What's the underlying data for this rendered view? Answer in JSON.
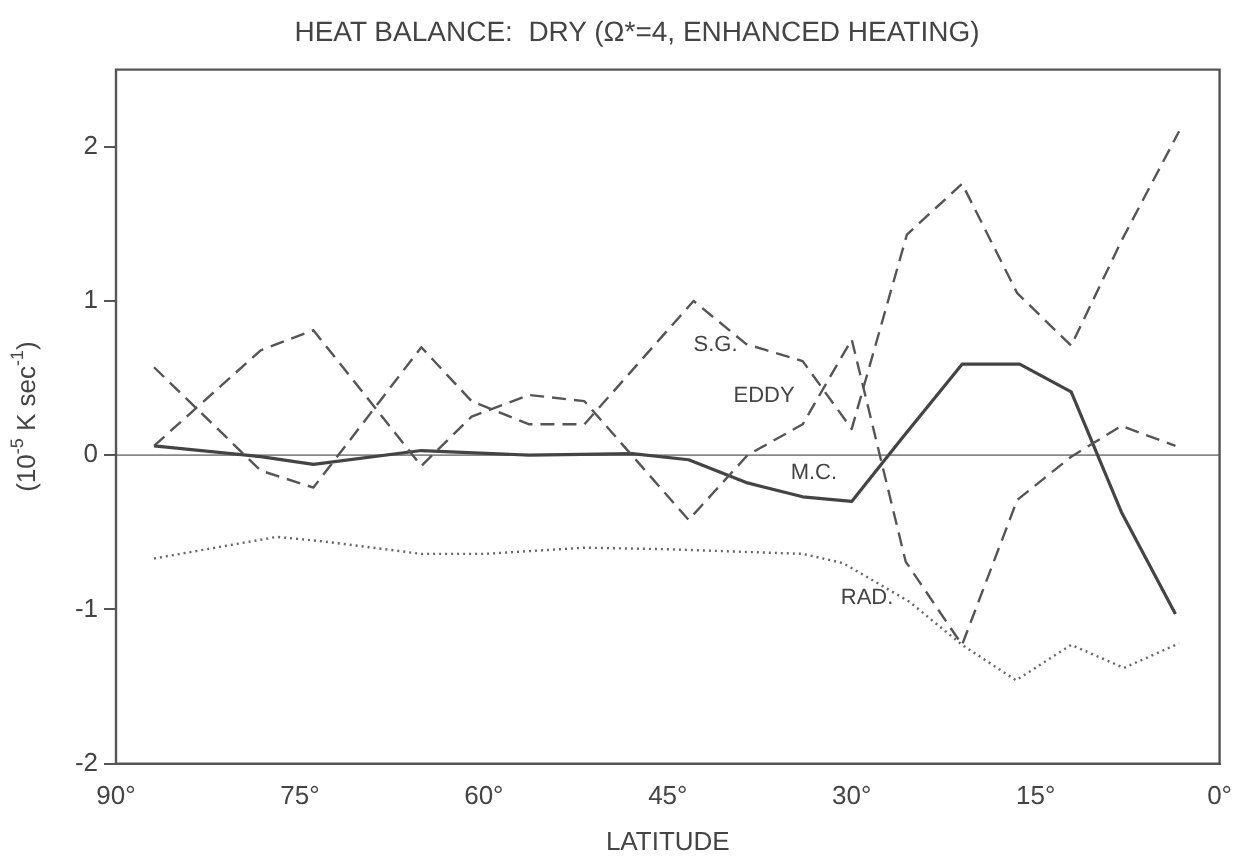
{
  "chart_data": {
    "type": "line",
    "title": "HEAT BALANCE:  DRY (Ω*=4, ENHANCED HEATING)",
    "xlabel": "LATITUDE",
    "ylabel": "(10$^{-5}$ K sec$^{-1}$)",
    "xlim": [
      90,
      0
    ],
    "xticks": [
      {
        "value": 90,
        "label": "90°"
      },
      {
        "value": 75,
        "label": "75°"
      },
      {
        "value": 60,
        "label": "60°"
      },
      {
        "value": 45,
        "label": "45°"
      },
      {
        "value": 30,
        "label": "30°"
      },
      {
        "value": 15,
        "label": "15°"
      },
      {
        "value": 0,
        "label": "0°"
      }
    ],
    "ylim": [
      -2,
      2.5
    ],
    "yticks": [
      -2,
      -1,
      0,
      1,
      2
    ],
    "grid": false,
    "legend": false,
    "marker": "none",
    "ref_lines": [
      {
        "axis": "y",
        "value": 0,
        "color": "#888888",
        "line_style": "solid"
      }
    ],
    "series": [
      {
        "name": "S.G.",
        "color": "#555555",
        "line_style": "dashed",
        "x": [
          86.9,
          78.2,
          73.9,
          65.1,
          61.0,
          56.3,
          51.8,
          42.9,
          38.6,
          34.0,
          30.0,
          25.5,
          21.0,
          16.5,
          12.1,
          8.0,
          3.3
        ],
        "values": [
          0.57,
          -0.1,
          -0.21,
          0.7,
          0.35,
          0.2,
          0.2,
          1.0,
          0.72,
          0.61,
          0.17,
          1.43,
          1.76,
          1.05,
          0.71,
          1.39,
          2.1
        ]
      },
      {
        "name": "EDDY",
        "color": "#555555",
        "line_style": "dashed",
        "x": [
          86.9,
          78.2,
          73.9,
          65.1,
          61.0,
          56.3,
          51.8,
          43.3,
          38.5,
          34.0,
          30.0,
          25.6,
          21.0,
          16.5,
          12.1,
          8.0,
          3.6
        ],
        "values": [
          0.06,
          0.68,
          0.81,
          -0.07,
          0.25,
          0.39,
          0.35,
          -0.42,
          0.0,
          0.2,
          0.75,
          -0.69,
          -1.23,
          -0.29,
          -0.01,
          0.19,
          0.06
        ]
      },
      {
        "name": "M.C.",
        "color": "#444444",
        "line_style": "solid",
        "x": [
          86.9,
          78.2,
          73.9,
          65.1,
          56.3,
          47.9,
          43.3,
          38.5,
          34.0,
          30.0,
          25.9,
          21.0,
          16.3,
          12.1,
          8.0,
          3.6
        ],
        "values": [
          0.06,
          -0.01,
          -0.06,
          0.03,
          0.0,
          0.01,
          -0.03,
          -0.18,
          -0.27,
          -0.3,
          0.11,
          0.59,
          0.59,
          0.41,
          -0.37,
          -1.03
        ]
      },
      {
        "name": "RAD.",
        "color": "#666666",
        "line_style": "dotted",
        "x": [
          86.9,
          76.9,
          73.0,
          65.1,
          59.9,
          51.8,
          45.0,
          34.0,
          30.7,
          25.3,
          21.0,
          16.6,
          12.1,
          7.8,
          3.3
        ],
        "values": [
          -0.67,
          -0.53,
          -0.56,
          -0.64,
          -0.64,
          -0.6,
          -0.61,
          -0.64,
          -0.7,
          -0.95,
          -1.23,
          -1.46,
          -1.23,
          -1.38,
          -1.22
        ]
      }
    ]
  }
}
